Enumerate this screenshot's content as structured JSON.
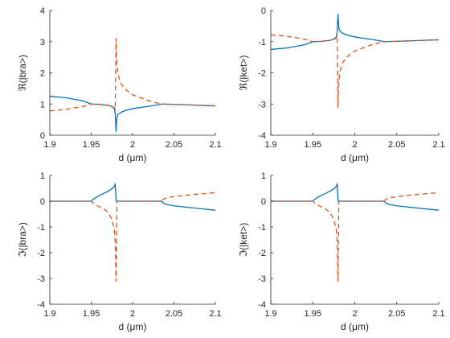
{
  "chart_data": [
    {
      "type": "line",
      "xlabel": "d (μm)",
      "ylabel": "ℜ(|bra>)",
      "xlim": [
        1.9,
        2.1
      ],
      "ylim": [
        0,
        4
      ],
      "xticks": [
        "1.9",
        "1.95",
        "2",
        "2.05",
        "2.1"
      ],
      "yticks": [
        "0",
        "1",
        "2",
        "3",
        "4"
      ],
      "series": [
        {
          "color": "#0072BD",
          "dash": "solid",
          "x": [
            1.9,
            1.92,
            1.94,
            1.95,
            1.96,
            1.97,
            1.975,
            1.978,
            1.979,
            1.98,
            1.981,
            1.982,
            1.985,
            1.99,
            2.0,
            2.01,
            2.02,
            2.03,
            2.035,
            2.05,
            2.07,
            2.1
          ],
          "y": [
            1.25,
            1.2,
            1.1,
            1.0,
            0.99,
            0.96,
            0.92,
            0.85,
            0.7,
            0.12,
            0.55,
            0.65,
            0.72,
            0.78,
            0.85,
            0.89,
            0.93,
            0.97,
            1.0,
            0.99,
            0.97,
            0.94
          ]
        },
        {
          "color": "#D95319",
          "dash": "dashed",
          "x": [
            1.9,
            1.92,
            1.94,
            1.95,
            1.96,
            1.97,
            1.975,
            1.978,
            1.979,
            1.98,
            1.981,
            1.982,
            1.985,
            1.99,
            2.0,
            2.01,
            2.02,
            2.03,
            2.035,
            2.05,
            2.07,
            2.1
          ],
          "y": [
            0.78,
            0.83,
            0.92,
            1.0,
            0.99,
            0.96,
            0.93,
            0.88,
            0.8,
            3.1,
            2.3,
            2.0,
            1.7,
            1.5,
            1.3,
            1.2,
            1.1,
            1.03,
            1.0,
            0.99,
            0.97,
            0.94
          ]
        }
      ]
    },
    {
      "type": "line",
      "xlabel": "d (μm)",
      "ylabel": "ℜ(|ket>)",
      "xlim": [
        1.9,
        2.1
      ],
      "ylim": [
        -4,
        0
      ],
      "xticks": [
        "1.9",
        "1.95",
        "2",
        "2.05",
        "2.1"
      ],
      "yticks": [
        "-4",
        "-3",
        "-2",
        "-1",
        "0"
      ],
      "series": [
        {
          "color": "#0072BD",
          "dash": "solid",
          "x": [
            1.9,
            1.92,
            1.94,
            1.95,
            1.96,
            1.97,
            1.975,
            1.978,
            1.979,
            1.98,
            1.981,
            1.982,
            1.985,
            1.99,
            2.0,
            2.01,
            2.02,
            2.03,
            2.035,
            2.05,
            2.07,
            2.1
          ],
          "y": [
            -1.25,
            -1.2,
            -1.1,
            -1.0,
            -0.99,
            -0.96,
            -0.92,
            -0.85,
            -0.7,
            -0.12,
            -0.55,
            -0.65,
            -0.72,
            -0.78,
            -0.85,
            -0.89,
            -0.93,
            -0.97,
            -1.0,
            -0.99,
            -0.97,
            -0.94
          ]
        },
        {
          "color": "#D95319",
          "dash": "dashed",
          "x": [
            1.9,
            1.92,
            1.94,
            1.95,
            1.96,
            1.97,
            1.975,
            1.978,
            1.979,
            1.98,
            1.981,
            1.982,
            1.985,
            1.99,
            2.0,
            2.01,
            2.02,
            2.03,
            2.035,
            2.05,
            2.07,
            2.1
          ],
          "y": [
            -0.78,
            -0.83,
            -0.92,
            -1.0,
            -0.99,
            -0.96,
            -0.93,
            -0.88,
            -0.8,
            -3.1,
            -2.3,
            -2.0,
            -1.7,
            -1.5,
            -1.3,
            -1.2,
            -1.1,
            -1.03,
            -1.0,
            -0.99,
            -0.97,
            -0.94
          ]
        }
      ]
    },
    {
      "type": "line",
      "xlabel": "d (μm)",
      "ylabel": "ℑ(|bra>)",
      "xlim": [
        1.9,
        2.1
      ],
      "ylim": [
        -4,
        1
      ],
      "xticks": [
        "1.9",
        "1.95",
        "2",
        "2.05",
        "2.1"
      ],
      "yticks": [
        "-4",
        "-3",
        "-2",
        "-1",
        "0",
        "1"
      ],
      "series": [
        {
          "color": "#0072BD",
          "dash": "solid",
          "x": [
            1.9,
            1.95,
            1.952,
            1.955,
            1.96,
            1.965,
            1.97,
            1.975,
            1.978,
            1.979,
            1.98,
            1.981,
            1.985,
            2.0,
            2.03,
            2.035,
            2.037,
            2.04,
            2.05,
            2.07,
            2.1
          ],
          "y": [
            0,
            0,
            0.06,
            0.13,
            0.22,
            0.3,
            0.38,
            0.48,
            0.58,
            0.68,
            0.02,
            0,
            0,
            0,
            0,
            0,
            -0.07,
            -0.12,
            -0.18,
            -0.25,
            -0.35
          ]
        },
        {
          "color": "#D95319",
          "dash": "dashed",
          "x": [
            1.9,
            1.95,
            1.952,
            1.955,
            1.96,
            1.965,
            1.97,
            1.975,
            1.978,
            1.979,
            1.98,
            1.981,
            1.985,
            2.0,
            2.03,
            2.035,
            2.037,
            2.04,
            2.05,
            2.07,
            2.1
          ],
          "y": [
            0,
            0,
            -0.06,
            -0.13,
            -0.22,
            -0.3,
            -0.42,
            -0.7,
            -1.1,
            -1.6,
            -3.1,
            0,
            0,
            0,
            0,
            0,
            0.07,
            0.12,
            0.18,
            0.25,
            0.33
          ]
        }
      ]
    },
    {
      "type": "line",
      "xlabel": "d (μm)",
      "ylabel": "ℑ(|ket>)",
      "xlim": [
        1.9,
        2.1
      ],
      "ylim": [
        -4,
        1
      ],
      "xticks": [
        "1.9",
        "1.95",
        "2",
        "2.05",
        "2.1"
      ],
      "yticks": [
        "-4",
        "-3",
        "-2",
        "-1",
        "0",
        "1"
      ],
      "series": [
        {
          "color": "#0072BD",
          "dash": "solid",
          "x": [
            1.9,
            1.95,
            1.952,
            1.955,
            1.96,
            1.965,
            1.97,
            1.975,
            1.978,
            1.979,
            1.98,
            1.981,
            1.985,
            2.0,
            2.03,
            2.035,
            2.037,
            2.04,
            2.05,
            2.07,
            2.1
          ],
          "y": [
            0,
            0,
            0.06,
            0.13,
            0.22,
            0.3,
            0.38,
            0.48,
            0.58,
            0.68,
            0.02,
            0,
            0,
            0,
            0,
            0,
            -0.07,
            -0.12,
            -0.18,
            -0.25,
            -0.35
          ]
        },
        {
          "color": "#D95319",
          "dash": "dashed",
          "x": [
            1.9,
            1.95,
            1.952,
            1.955,
            1.96,
            1.965,
            1.97,
            1.975,
            1.978,
            1.979,
            1.98,
            1.981,
            1.985,
            2.0,
            2.03,
            2.035,
            2.037,
            2.04,
            2.05,
            2.07,
            2.1
          ],
          "y": [
            0,
            0,
            -0.06,
            -0.13,
            -0.22,
            -0.3,
            -0.42,
            -0.7,
            -1.1,
            -1.6,
            -3.1,
            0,
            0,
            0,
            0,
            0,
            0.07,
            0.12,
            0.18,
            0.25,
            0.33
          ]
        }
      ]
    }
  ]
}
